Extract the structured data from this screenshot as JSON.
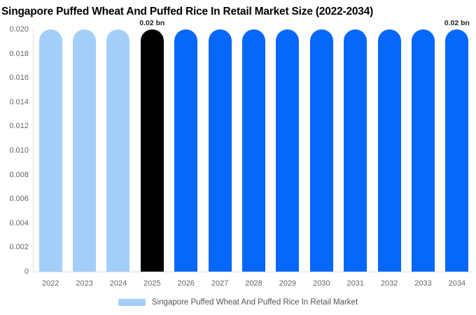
{
  "title": "Singapore Puffed Wheat And Puffed Rice In Retail Market Size (2022-2034)",
  "legend": {
    "label": "Singapore Puffed Wheat And Puffed Rice In Retail Market",
    "swatch_color": "#A4CEFA"
  },
  "colors": {
    "historical_bar": "#A4CEFA",
    "highlight_bar": "#000000",
    "forecast_bar": "#0667FB",
    "axis_line": "#E0E0E0",
    "tick_text": "#666666",
    "value_label_text": "#222222",
    "legend_text": "#555555",
    "title_text": "#000000",
    "background": "#FFFFFF"
  },
  "chart_data": {
    "type": "bar",
    "title": "Singapore Puffed Wheat And Puffed Rice In Retail Market Size (2022-2034)",
    "categories": [
      "2022",
      "2023",
      "2024",
      "2025",
      "2026",
      "2027",
      "2028",
      "2029",
      "2030",
      "2031",
      "2032",
      "2033",
      "2034"
    ],
    "series": [
      {
        "name": "Singapore Puffed Wheat And Puffed Rice In Retail Market",
        "values": [
          0.02,
          0.02,
          0.02,
          0.02,
          0.02,
          0.02,
          0.02,
          0.02,
          0.02,
          0.02,
          0.02,
          0.02,
          0.02
        ]
      }
    ],
    "bar_colors": [
      "#A4CEFA",
      "#A4CEFA",
      "#A4CEFA",
      "#000000",
      "#0667FB",
      "#0667FB",
      "#0667FB",
      "#0667FB",
      "#0667FB",
      "#0667FB",
      "#0667FB",
      "#0667FB",
      "#0667FB"
    ],
    "value_labels": [
      "",
      "",
      "",
      "0.02 bn",
      "",
      "",
      "",
      "",
      "",
      "",
      "",
      "",
      "0.02 bn"
    ],
    "xlabel": "",
    "ylabel": "",
    "ylim": [
      0,
      0.02
    ],
    "ytick_step": 0.002,
    "ytick_labels": [
      "0",
      "0.002",
      "0.004",
      "0.006",
      "0.008",
      "0.010",
      "0.012",
      "0.014",
      "0.016",
      "0.018",
      "0.020"
    ],
    "grid": false,
    "legend_position": "bottom"
  }
}
